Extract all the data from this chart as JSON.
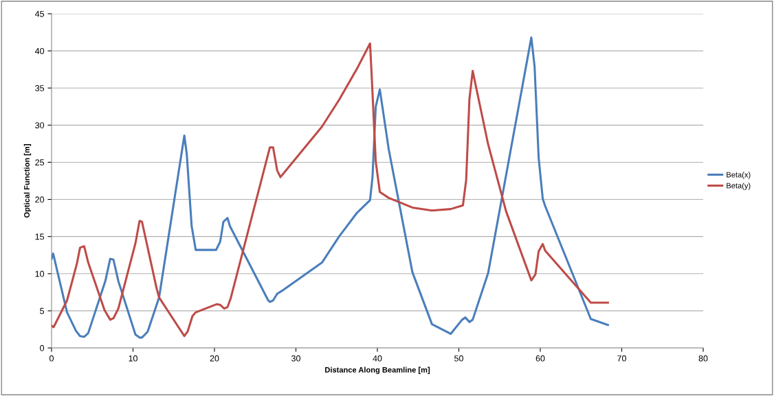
{
  "chart_data": {
    "type": "line",
    "xlabel": "Distance Along Beamline [m]",
    "ylabel": "Optical Function [m]",
    "xlim": [
      0,
      80
    ],
    "xticks": [
      0,
      10,
      20,
      30,
      40,
      50,
      60,
      70,
      80
    ],
    "ylim": [
      0,
      45
    ],
    "yticks": [
      0,
      5,
      10,
      15,
      20,
      25,
      30,
      35,
      40,
      45
    ],
    "grid": "y",
    "legend": "right",
    "marker": "none",
    "line_style": "solid",
    "series": [
      {
        "name": "Beta(x)",
        "color": "#4a7ebb",
        "x": [
          0,
          0.2,
          1.9,
          3.0,
          3.5,
          4.0,
          4.5,
          6.6,
          7.2,
          7.6,
          8.2,
          10.3,
          10.8,
          11.1,
          11.8,
          13.2,
          16.3,
          16.6,
          17.2,
          17.7,
          20.2,
          20.7,
          21.1,
          21.6,
          21.9,
          26.6,
          26.8,
          27.2,
          27.7,
          28.3,
          33.2,
          35.3,
          37.5,
          39.1,
          39.4,
          39.8,
          40.3,
          41.4,
          44.3,
          46.7,
          49.0,
          50.4,
          50.8,
          51.3,
          51.7,
          53.6,
          58.9,
          59.3,
          59.8,
          60.3,
          60.6,
          66.2,
          68.3
        ],
        "values": [
          12.0,
          12.7,
          4.8,
          2.3,
          1.6,
          1.5,
          2.0,
          9.0,
          12.0,
          11.9,
          9.0,
          1.8,
          1.4,
          1.4,
          2.2,
          6.8,
          28.6,
          26.1,
          16.4,
          13.2,
          13.2,
          14.3,
          17.0,
          17.5,
          16.4,
          6.4,
          6.2,
          6.4,
          7.3,
          7.7,
          11.5,
          15.0,
          18.2,
          19.9,
          23.0,
          32.5,
          34.8,
          26.7,
          10.2,
          3.2,
          1.9,
          3.8,
          4.1,
          3.5,
          3.8,
          10.1,
          41.8,
          37.9,
          25.6,
          20.1,
          19.1,
          3.9,
          3.1
        ]
      },
      {
        "name": "Beta(y)",
        "color": "#be4b48",
        "x": [
          0,
          0.25,
          1.9,
          3.1,
          3.5,
          4.0,
          4.5,
          6.5,
          7.2,
          7.6,
          8.2,
          10.3,
          10.8,
          11.1,
          12.9,
          13.2,
          16.3,
          16.7,
          17.3,
          17.7,
          20.3,
          20.7,
          21.2,
          21.6,
          22.0,
          26.8,
          27.2,
          27.7,
          28.1,
          33.2,
          35.3,
          37.5,
          39.1,
          39.3,
          39.8,
          40.3,
          41.4,
          44.3,
          46.7,
          49.0,
          50.5,
          50.9,
          51.3,
          51.7,
          53.6,
          55.8,
          58.9,
          59.4,
          59.8,
          60.3,
          60.6,
          66.2,
          68.3
        ],
        "values": [
          3.0,
          2.8,
          6.4,
          11.3,
          13.5,
          13.7,
          11.5,
          5.1,
          3.8,
          4.0,
          5.3,
          14.1,
          17.1,
          17.0,
          8.0,
          6.8,
          1.6,
          2.2,
          4.3,
          4.8,
          5.9,
          5.8,
          5.3,
          5.5,
          6.7,
          27.0,
          27.0,
          23.9,
          23.0,
          29.8,
          33.4,
          37.6,
          41.0,
          36.7,
          25.1,
          21.0,
          20.2,
          18.9,
          18.5,
          18.7,
          19.2,
          22.6,
          33.5,
          37.3,
          27.4,
          18.4,
          9.1,
          9.9,
          13.0,
          14.0,
          13.1,
          6.1,
          6.1
        ]
      }
    ]
  }
}
